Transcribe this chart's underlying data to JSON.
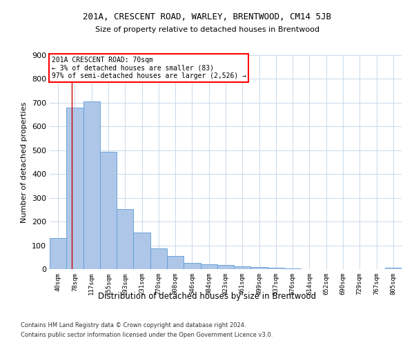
{
  "title": "201A, CRESCENT ROAD, WARLEY, BRENTWOOD, CM14 5JB",
  "subtitle": "Size of property relative to detached houses in Brentwood",
  "xlabel": "Distribution of detached houses by size in Brentwood",
  "ylabel": "Number of detached properties",
  "categories": [
    "40sqm",
    "78sqm",
    "117sqm",
    "155sqm",
    "193sqm",
    "231sqm",
    "270sqm",
    "308sqm",
    "346sqm",
    "384sqm",
    "423sqm",
    "461sqm",
    "499sqm",
    "537sqm",
    "576sqm",
    "614sqm",
    "652sqm",
    "690sqm",
    "729sqm",
    "767sqm",
    "805sqm"
  ],
  "values": [
    130,
    678,
    705,
    493,
    253,
    153,
    88,
    55,
    27,
    20,
    17,
    12,
    8,
    5,
    2,
    1,
    1,
    1,
    0,
    1,
    5
  ],
  "bar_color": "#aec6e8",
  "bar_edge_color": "#5b9bd5",
  "highlight_color": "#cc0000",
  "ylim": [
    0,
    900
  ],
  "yticks": [
    0,
    100,
    200,
    300,
    400,
    500,
    600,
    700,
    800,
    900
  ],
  "annotation_title": "201A CRESCENT ROAD: 70sqm",
  "annotation_line1": "← 3% of detached houses are smaller (83)",
  "annotation_line2": "97% of semi-detached houses are larger (2,526) →",
  "footer_line1": "Contains HM Land Registry data © Crown copyright and database right 2024.",
  "footer_line2": "Contains public sector information licensed under the Open Government Licence v3.0.",
  "bg_color": "#ffffff",
  "grid_color": "#c8d8e8"
}
